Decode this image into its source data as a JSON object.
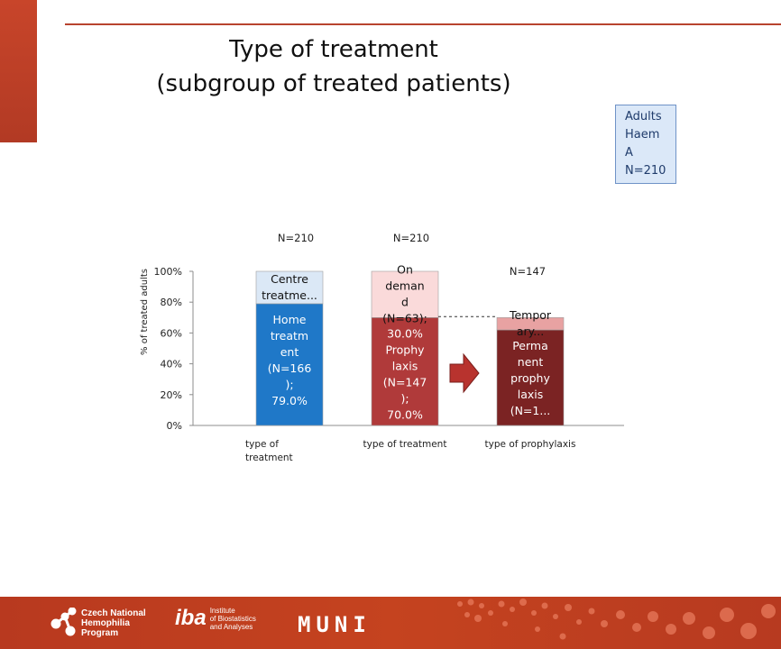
{
  "slide": {
    "title_line1": "Type of treatment",
    "title_line2": "(subgroup of treated patients)",
    "legend_lines": [
      "Adults",
      "Haem",
      "A",
      "N=210"
    ]
  },
  "colors": {
    "accent": "#c24a2c",
    "home": "#1f78c8",
    "centre": "#dbe8f6",
    "prophylaxis": "#b03a3a",
    "on_demand": "#fadada",
    "permanent": "#7b2323",
    "temporary": "#e8a2a2",
    "arrow": "#b8332e"
  },
  "chart_data": {
    "type": "bar",
    "stacked": true,
    "ylabel": "% of treated adults",
    "ylim": [
      0,
      100
    ],
    "yticks": [
      "0%",
      "20%",
      "40%",
      "60%",
      "80%",
      "100%"
    ],
    "categories": [
      {
        "label_lines": [
          "type of",
          "treatment"
        ],
        "n_label": "N=210"
      },
      {
        "label_lines": [
          "type of treatment"
        ],
        "n_label": "N=210"
      },
      {
        "label_lines": [
          "type of prophylaxis"
        ],
        "n_label": "N=147"
      }
    ],
    "bars": [
      {
        "segments": [
          {
            "value": 79.0,
            "color": "home",
            "label_lines": [
              "Home",
              "treatm",
              "ent",
              "(N=166",
              ");",
              "79.0%"
            ],
            "text_color": "#ffffff"
          },
          {
            "value": 21.0,
            "color": "centre",
            "label_lines": [
              "Centre",
              "treatme..."
            ],
            "text_color": "#111111"
          }
        ]
      },
      {
        "segments": [
          {
            "value": 70.0,
            "color": "prophylaxis",
            "label_lines": [
              "30.0%",
              "Prophy",
              "laxis",
              "(N=147",
              ");",
              "70.0%"
            ],
            "text_color": "#ffffff"
          },
          {
            "value": 30.0,
            "color": "on_demand",
            "label_lines": [
              "On",
              "deman",
              "d",
              "(N=63);"
            ],
            "text_color": "#111111"
          }
        ]
      },
      {
        "segments": [
          {
            "value": 62.0,
            "color": "permanent",
            "label_lines": [
              "Perma",
              "nent",
              "prophy",
              "laxis",
              "(N=1..."
            ],
            "text_color": "#ffffff"
          },
          {
            "value": 8.0,
            "color": "temporary",
            "label_lines": [
              "Tempor",
              "ary..."
            ],
            "text_color": "#111111"
          }
        ]
      }
    ]
  },
  "footer": {
    "cnhp_lines": [
      "Czech National",
      "Hemophilia",
      "Program"
    ],
    "iba_mark": "iba",
    "iba_lines": [
      "Institute",
      "of Biostatistics",
      "and Analyses"
    ],
    "muni": "MUNI"
  }
}
